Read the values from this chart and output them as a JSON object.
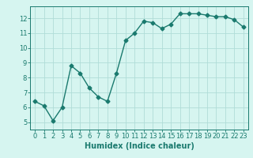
{
  "x": [
    0,
    1,
    2,
    3,
    4,
    5,
    6,
    7,
    8,
    9,
    10,
    11,
    12,
    13,
    14,
    15,
    16,
    17,
    18,
    19,
    20,
    21,
    22,
    23
  ],
  "y": [
    6.4,
    6.1,
    5.1,
    6.0,
    8.8,
    8.3,
    7.3,
    6.7,
    6.4,
    8.3,
    10.5,
    11.0,
    11.8,
    11.7,
    11.3,
    11.6,
    12.3,
    12.3,
    12.3,
    12.2,
    12.1,
    12.1,
    11.9,
    11.4
  ],
  "line_color": "#1a7a6e",
  "marker": "D",
  "markersize": 2.5,
  "linewidth": 1.0,
  "bg_color": "#d6f5f0",
  "grid_color": "#b0ddd8",
  "xlabel": "Humidex (Indice chaleur)",
  "xlabel_fontsize": 7,
  "tick_fontsize": 6,
  "yticks": [
    5,
    6,
    7,
    8,
    9,
    10,
    11,
    12
  ],
  "ylim": [
    4.5,
    12.8
  ],
  "xlim": [
    -0.5,
    23.5
  ],
  "xticks": [
    0,
    1,
    2,
    3,
    4,
    5,
    6,
    7,
    8,
    9,
    10,
    11,
    12,
    13,
    14,
    15,
    16,
    17,
    18,
    19,
    20,
    21,
    22,
    23
  ]
}
